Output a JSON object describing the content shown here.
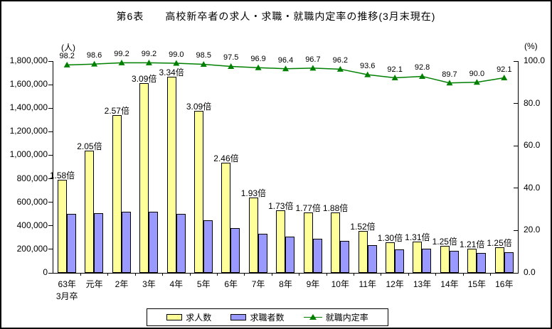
{
  "chart_data": {
    "type": "bar",
    "title": "第6表　　高校新卒者の求人・求職・就職内定率の推移(3月末現在)",
    "categories": [
      "63年",
      "元年",
      "2年",
      "3年",
      "4年",
      "5年",
      "6年",
      "7年",
      "8年",
      "9年",
      "10年",
      "11年",
      "12年",
      "13年",
      "14年",
      "15年",
      "16年"
    ],
    "first_category_sub_label": "3月卒",
    "series": [
      {
        "name": "求人数",
        "type": "bar",
        "axis": "left",
        "color": "#FFFF99",
        "values": [
          790000,
          1040000,
          1340000,
          1610000,
          1670000,
          1375000,
          935000,
          640000,
          530000,
          515000,
          515000,
          355000,
          260000,
          268000,
          232000,
          208000,
          220000
        ]
      },
      {
        "name": "求職者数",
        "type": "bar",
        "axis": "left",
        "color": "#9999FF",
        "values": [
          500000,
          507000,
          521000,
          521000,
          500000,
          445000,
          380000,
          331000,
          306000,
          291000,
          274000,
          234000,
          200000,
          205000,
          186000,
          172000,
          176000
        ]
      },
      {
        "name": "就職内定率",
        "type": "line",
        "axis": "right",
        "color": "#008000",
        "values": [
          98.2,
          98.6,
          99.2,
          99.2,
          99.0,
          98.5,
          97.5,
          96.9,
          96.4,
          96.7,
          96.2,
          93.6,
          92.1,
          92.8,
          89.7,
          90.0,
          92.1
        ]
      }
    ],
    "bar_ratio_labels": [
      "1.58倍",
      "2.05倍",
      "2.57倍",
      "3.09倍",
      "3.34倍",
      "3.09倍",
      "2.46倍",
      "1.93倍",
      "1.73倍",
      "1.77倍",
      "1.88倍",
      "1.52倍",
      "1.30倍",
      "1.31倍",
      "1.25倍",
      "1.21倍",
      "1.25倍"
    ],
    "line_point_labels": [
      "98.2",
      "98.6",
      "99.2",
      "99.2",
      "99.0",
      "98.5",
      "97.5",
      "96.9",
      "96.4",
      "96.7",
      "96.2",
      "93.6",
      "92.1",
      "92.8",
      "89.7",
      "90.0",
      "92.1"
    ],
    "left_axis": {
      "unit": "(人)",
      "min": 0,
      "max": 1800000,
      "step": 200000,
      "tick_labels": [
        "0",
        "200,000",
        "400,000",
        "600,000",
        "800,000",
        "1,000,000",
        "1,200,000",
        "1,400,000",
        "1,600,000",
        "1,800,000"
      ]
    },
    "right_axis": {
      "unit": "(%)",
      "min": 0,
      "max": 100,
      "step": 20,
      "tick_labels": [
        "0.0",
        "20.0",
        "40.0",
        "60.0",
        "80.0",
        "100.0"
      ]
    },
    "grid": false,
    "legend_position": "bottom"
  }
}
